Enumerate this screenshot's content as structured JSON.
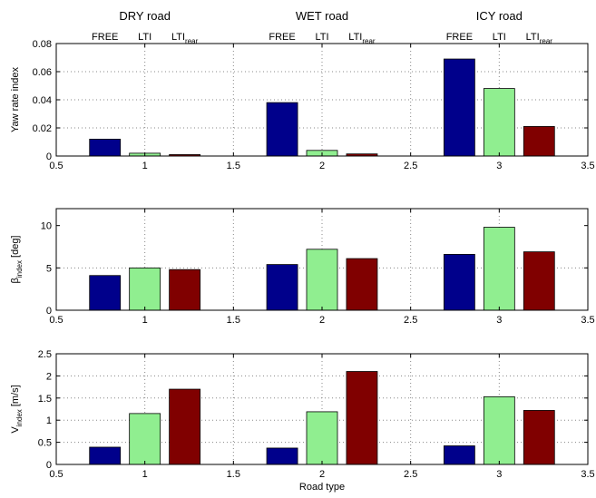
{
  "header": {
    "roads": [
      {
        "label": "DRY road",
        "x": 1
      },
      {
        "label": "WET road",
        "x": 2
      },
      {
        "label": "ICY road",
        "x": 3
      }
    ],
    "methods": [
      {
        "label": "FREE",
        "sub": ""
      },
      {
        "label": "LTI",
        "sub": ""
      },
      {
        "label": "LTI",
        "sub": "rear"
      }
    ]
  },
  "colors": {
    "FREE": "#00008b",
    "LTI": "#90ee90",
    "LTI_rear": "#800000",
    "bar_edge": "#000000",
    "grid": "#888888"
  },
  "chart_data": [
    {
      "type": "bar",
      "ylabel": "Yaw rate index",
      "ylabel_sub": "",
      "ylabel_suffix": "",
      "xlabel": "",
      "x": [
        1,
        2,
        3
      ],
      "xlim": [
        0.5,
        3.5
      ],
      "xticks": [
        0.5,
        1,
        1.5,
        2,
        2.5,
        3,
        3.5
      ],
      "xtick_labels": [
        "0.5",
        "1",
        "1.5",
        "2",
        "2.5",
        "3",
        "3.5"
      ],
      "ylim": [
        0,
        0.08
      ],
      "yticks": [
        0,
        0.02,
        0.04,
        0.06,
        0.08
      ],
      "ytick_labels": [
        "0",
        "0.02",
        "0.04",
        "0.06",
        "0.08"
      ],
      "grid": true,
      "series": [
        {
          "name": "FREE",
          "values": [
            0.012,
            0.038,
            0.069
          ]
        },
        {
          "name": "LTI",
          "values": [
            0.002,
            0.004,
            0.048
          ]
        },
        {
          "name": "LTI_rear",
          "values": [
            0.001,
            0.0015,
            0.021
          ]
        }
      ]
    },
    {
      "type": "bar",
      "ylabel": "β",
      "ylabel_sub": "index",
      "ylabel_suffix": " [deg]",
      "xlabel": "",
      "x": [
        1,
        2,
        3
      ],
      "xlim": [
        0.5,
        3.5
      ],
      "xticks": [
        0.5,
        1,
        1.5,
        2,
        2.5,
        3,
        3.5
      ],
      "xtick_labels": [
        "0.5",
        "1",
        "1.5",
        "2",
        "2.5",
        "3",
        "3.5"
      ],
      "ylim": [
        0,
        12
      ],
      "yticks": [
        0,
        5,
        10
      ],
      "ytick_labels": [
        "0",
        "5",
        "10"
      ],
      "grid": true,
      "series": [
        {
          "name": "FREE",
          "values": [
            4.1,
            5.4,
            6.6
          ]
        },
        {
          "name": "LTI",
          "values": [
            5.0,
            7.2,
            9.8
          ]
        },
        {
          "name": "LTI_rear",
          "values": [
            4.8,
            6.1,
            6.9
          ]
        }
      ]
    },
    {
      "type": "bar",
      "ylabel": "V",
      "ylabel_sub": "index",
      "ylabel_suffix": " [m/s]",
      "xlabel": "Road type",
      "x": [
        1,
        2,
        3
      ],
      "xlim": [
        0.5,
        3.5
      ],
      "xticks": [
        0.5,
        1,
        1.5,
        2,
        2.5,
        3,
        3.5
      ],
      "xtick_labels": [
        "0.5",
        "1",
        "1.5",
        "2",
        "2.5",
        "3",
        "3.5"
      ],
      "ylim": [
        0,
        2.5
      ],
      "yticks": [
        0,
        0.5,
        1,
        1.5,
        2,
        2.5
      ],
      "ytick_labels": [
        "0",
        "0.5",
        "1",
        "1.5",
        "2",
        "2.5"
      ],
      "grid": true,
      "series": [
        {
          "name": "FREE",
          "values": [
            0.39,
            0.37,
            0.42
          ]
        },
        {
          "name": "LTI",
          "values": [
            1.15,
            1.19,
            1.53
          ]
        },
        {
          "name": "LTI_rear",
          "values": [
            1.7,
            2.1,
            1.22
          ]
        }
      ]
    }
  ]
}
